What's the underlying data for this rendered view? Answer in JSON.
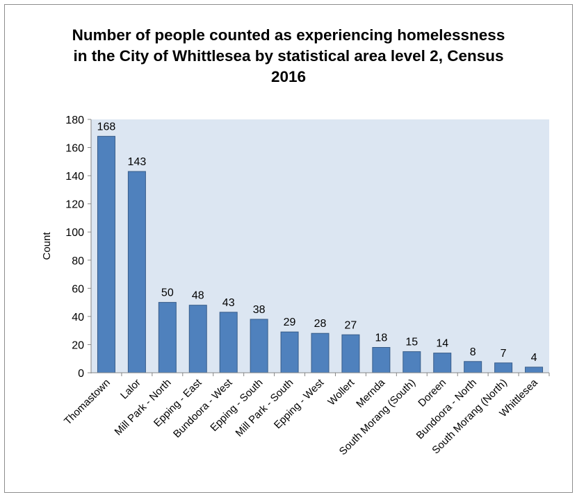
{
  "chart_data": {
    "type": "bar",
    "title_lines": [
      "Number of people counted as experiencing homelessness",
      "in the City of Whittlesea by statistical area level 2, Census",
      "2016"
    ],
    "xlabel": "",
    "ylabel": "Count",
    "ylim": [
      0,
      180
    ],
    "yticks": [
      "0",
      "20",
      "40",
      "60",
      "80",
      "100",
      "120",
      "140",
      "160",
      "180"
    ],
    "categories": [
      "Thomastown",
      "Lalor",
      "Mill Park - North",
      "Epping - East",
      "Bundoora - West",
      "Epping - South",
      "Mill Park - South",
      "Epping - West",
      "Wollert",
      "Mernda",
      "South Morang (South)",
      "Doreen",
      "Bundoora - North",
      "South Morang (North)",
      "Whittlesea"
    ],
    "values": [
      168,
      143,
      50,
      48,
      43,
      38,
      29,
      28,
      27,
      18,
      15,
      14,
      8,
      7,
      4
    ],
    "data_labels": [
      "168",
      "143",
      "50",
      "48",
      "43",
      "38",
      "29",
      "28",
      "27",
      "18",
      "15",
      "14",
      "8",
      "7",
      "4"
    ],
    "grid": false,
    "legend": "none",
    "colors": {
      "bar": "#4f81bd",
      "bar_edge": "#385d8a",
      "plot_bg": "#dce6f2",
      "axis": "#868686"
    }
  }
}
